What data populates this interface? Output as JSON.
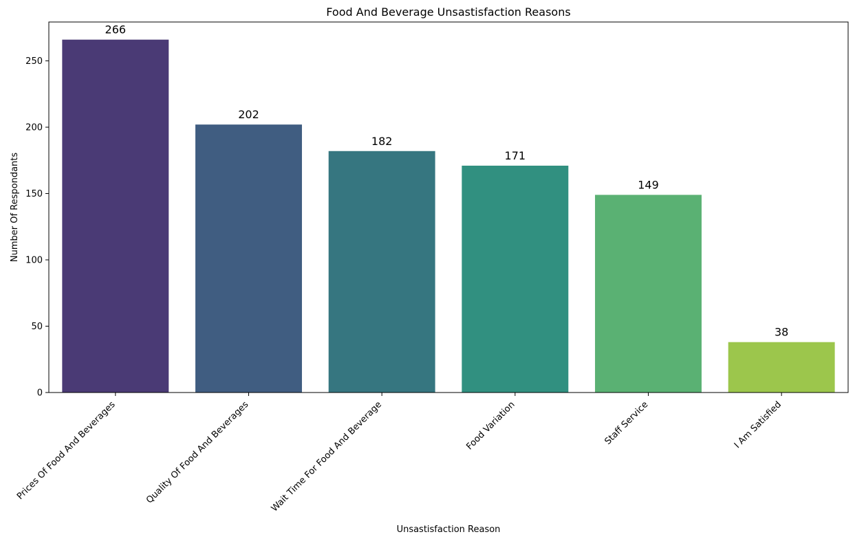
{
  "chart_data": {
    "type": "bar",
    "title": "Food And Beverage Unsastisfaction Reasons",
    "xlabel": "Unsastisfaction Reason",
    "ylabel": "Number Of Respondants",
    "categories": [
      "Prices Of Food And Beverages",
      "Quality Of Food And Beverages",
      "Wait Time For Food And Beverage",
      "Food Variation",
      "Staff Service",
      "I Am Satisfied"
    ],
    "values": [
      266,
      202,
      182,
      171,
      149,
      38
    ],
    "colors": [
      "#4a3a75",
      "#405d81",
      "#367680",
      "#319080",
      "#5ab173",
      "#9cc64c"
    ],
    "ylim": [
      0,
      279.3
    ],
    "yticks": [
      0,
      50,
      100,
      150,
      200,
      250
    ],
    "grid": false,
    "legend": "none",
    "data_labels": true
  }
}
